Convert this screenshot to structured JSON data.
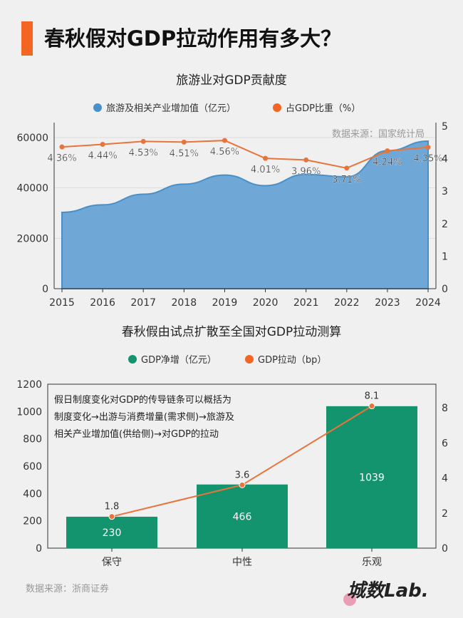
{
  "header": {
    "title": "春秋假对GDP拉动作用有多大？"
  },
  "footer": {
    "source": "数据来源：浙商证券",
    "logo": "城数Lab."
  },
  "colors": {
    "accent": "#f26522",
    "area": "#6fa8d6",
    "line": "#e8743b",
    "bar": "#13946e"
  },
  "chart_data": [
    {
      "type": "area+line",
      "title": "旅游业对GDP贡献度",
      "annotation": "数据来源：国家统计局",
      "categories": [
        "2015",
        "2016",
        "2017",
        "2018",
        "2019",
        "2020",
        "2021",
        "2022",
        "2023",
        "2024"
      ],
      "series": [
        {
          "name": "旅游及相关产业增加值（亿元）",
          "type": "area",
          "axis": "left",
          "values": [
            30300,
            33300,
            37500,
            41500,
            45100,
            40900,
            45400,
            44400,
            54800,
            58600
          ]
        },
        {
          "name": "占GDP比重（%）",
          "type": "line",
          "axis": "right",
          "values": [
            4.36,
            4.44,
            4.53,
            4.51,
            4.56,
            4.01,
            3.96,
            3.71,
            4.24,
            4.35
          ],
          "labels": [
            "4.36%",
            "4.44%",
            "4.53%",
            "4.51%",
            "4.56%",
            "4.01%",
            "3.96%",
            "3.71%",
            "4.24%",
            "4.35%"
          ]
        }
      ],
      "ylim": [
        0,
        65000
      ],
      "yticks": [
        "0",
        "20000",
        "40000",
        "60000"
      ],
      "y2lim": [
        0,
        5
      ],
      "y2ticks": [
        "0",
        "1",
        "2",
        "3",
        "4",
        "5"
      ],
      "grid": true,
      "legend": "top"
    },
    {
      "type": "bar+line",
      "title": "春秋假由试点扩散至全国对GDP拉动测算",
      "annotation": [
        "假日制度变化对GDP的传导链条可以概括为",
        "制度变化→出游与消费增量(需求侧)→旅游及",
        "相关产业增加值(供给侧)→对GDP的拉动"
      ],
      "categories": [
        "保守",
        "中性",
        "乐观"
      ],
      "series": [
        {
          "name": "GDP净增（亿元）",
          "type": "bar",
          "axis": "left",
          "values": [
            230,
            466,
            1039
          ],
          "labels": [
            "230",
            "466",
            "1039"
          ]
        },
        {
          "name": "GDP拉动（bp）",
          "type": "line",
          "axis": "right",
          "values": [
            1.8,
            3.6,
            8.1
          ],
          "labels": [
            "1.8",
            "3.6",
            "8.1"
          ]
        }
      ],
      "ylim": [
        0,
        1200
      ],
      "yticks": [
        "0",
        "200",
        "400",
        "600",
        "800",
        "1000",
        "1200"
      ],
      "y2lim": [
        0,
        9.4
      ],
      "y2ticks": [
        "0",
        "2",
        "4",
        "6",
        "8"
      ],
      "legend": "top"
    }
  ]
}
